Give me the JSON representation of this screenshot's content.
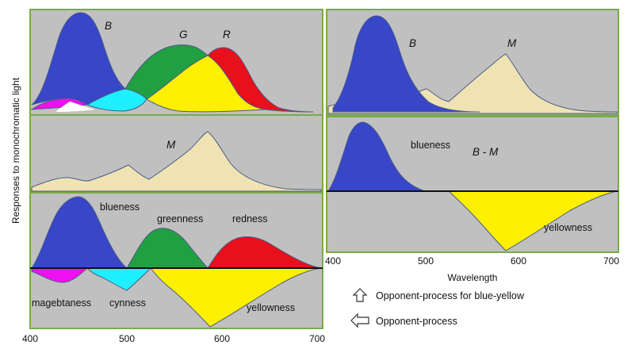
{
  "axis": {
    "y_title": "Responses to monochromatic light",
    "x_title": "Wavelength",
    "left_ticks": [
      "400",
      "500",
      "600",
      "700"
    ],
    "right_ticks": [
      "400",
      "500",
      "600",
      "700"
    ]
  },
  "panel1": {
    "b": "B",
    "g": "G",
    "r": "R"
  },
  "panel2": {
    "b": "B",
    "m": "M"
  },
  "panel3": {
    "m": "M"
  },
  "panel4": {
    "blueness": "blueness",
    "formula": "B - M",
    "yellowness": "yellowness"
  },
  "panel5": {
    "blueness": "blueness",
    "greenness": "greenness",
    "redness": "redness",
    "magenta": "magebtaness",
    "cyan": "cynness",
    "yellowness": "yellowness"
  },
  "legend": {
    "blue_yellow": "Opponent-process for blue-yellow",
    "opponent": "Opponent-process"
  },
  "colors": {
    "panel_bg": "#c0c0c0",
    "panel_border": "#7aaa4a",
    "blue": "#3846c8",
    "green": "#21a042",
    "red": "#e8101b",
    "yellow": "#fff000",
    "cyan": "#1ff0ff",
    "magenta": "#ee10f0",
    "beige": "#efe3b4",
    "outline": "#4a5a88"
  }
}
